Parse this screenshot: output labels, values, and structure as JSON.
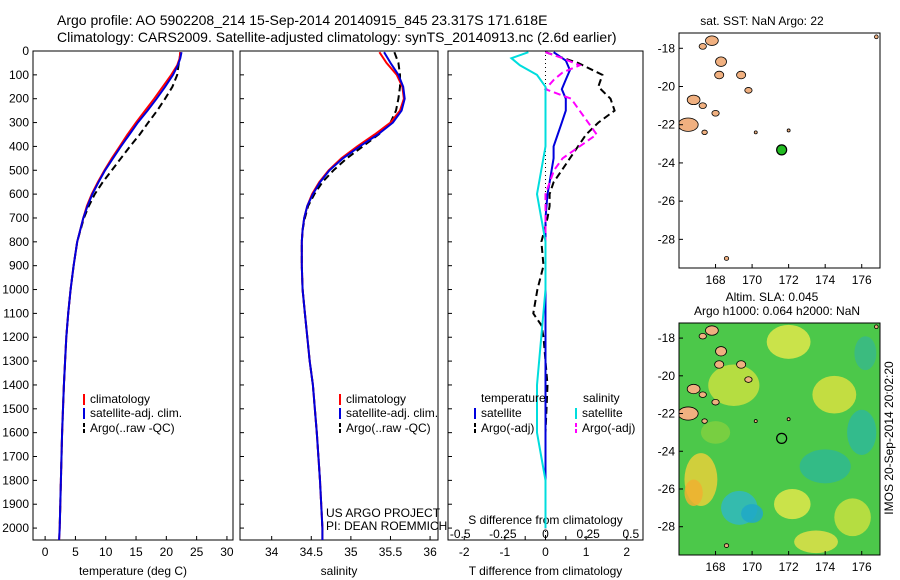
{
  "header": {
    "title_line1": "Argo profile: AO 5902208_214 15-Sep-2014 20140915_845 23.317S 171.618E",
    "title_line2": "Climatology: CARS2009. Satellite-adjusted climatology: synTS_20140913.nc (2.6d earlier)"
  },
  "side_text": "IMOS 20-Sep-2014 20:02:20",
  "project_credit": {
    "line1": "US ARGO PROJECT",
    "line2": "PI: DEAN ROEMMICH"
  },
  "colors": {
    "climatology": "#ff0000",
    "satellite": "#0000dd",
    "argo": "#000000",
    "sal_satellite": "#00dddd",
    "sal_argo": "#ff00ff",
    "land": "#f0b080",
    "marker": "#22bb22"
  },
  "chart_data": [
    {
      "type": "line",
      "xlabel": "temperature (deg C)",
      "ylabel": "",
      "xlim": [
        -2,
        31
      ],
      "ylim": [
        2050,
        0
      ],
      "x_ticks": [
        0,
        5,
        10,
        15,
        20,
        25,
        30
      ],
      "y_ticks": [
        0,
        100,
        200,
        300,
        400,
        500,
        600,
        700,
        800,
        900,
        1000,
        1100,
        1200,
        1300,
        1400,
        1500,
        1600,
        1700,
        1800,
        1900,
        2000
      ],
      "legend": [
        "climatology",
        "satellite-adj. clim.",
        "Argo(..raw -QC)"
      ],
      "series": [
        {
          "name": "climatology",
          "depth": [
            5,
            30,
            60,
            100,
            150,
            200,
            250,
            300,
            350,
            400,
            450,
            500,
            550,
            600,
            650,
            700,
            800,
            900,
            1000,
            1100,
            1200,
            1300,
            1400,
            1600,
            1800,
            2000,
            2050
          ],
          "values": [
            22.3,
            22.2,
            21.8,
            20.8,
            19.4,
            18.0,
            16.5,
            15.0,
            13.6,
            12.3,
            11.0,
            9.8,
            8.7,
            7.7,
            6.9,
            6.3,
            5.3,
            4.7,
            4.2,
            3.8,
            3.5,
            3.3,
            3.1,
            2.8,
            2.6,
            2.4,
            2.3
          ]
        },
        {
          "name": "satellite-adj. clim.",
          "depth": [
            5,
            30,
            60,
            100,
            150,
            200,
            250,
            300,
            350,
            400,
            450,
            500,
            550,
            600,
            650,
            700,
            800,
            900,
            1000,
            1100,
            1200,
            1300,
            1400,
            1600,
            1800,
            2000,
            2050
          ],
          "values": [
            22.5,
            22.3,
            21.9,
            21.1,
            19.8,
            18.4,
            16.9,
            15.3,
            13.9,
            12.5,
            11.2,
            9.9,
            8.8,
            7.8,
            7.0,
            6.3,
            5.3,
            4.7,
            4.2,
            3.8,
            3.5,
            3.3,
            3.1,
            2.8,
            2.6,
            2.4,
            2.3
          ]
        },
        {
          "name": "Argo(..raw -QC)",
          "depth": [
            5,
            30,
            60,
            100,
            150,
            200,
            250,
            300,
            350,
            400,
            450,
            500,
            550,
            600,
            650,
            700,
            800,
            900,
            1000,
            1100,
            1200,
            1300,
            1400,
            1600,
            1800,
            2000
          ],
          "values": [
            22.3,
            22.2,
            22.0,
            21.8,
            21.0,
            19.8,
            18.5,
            17.0,
            15.6,
            14.0,
            12.5,
            11.0,
            9.5,
            8.2,
            7.2,
            6.4,
            5.3,
            4.7,
            4.2,
            3.8,
            3.5,
            3.3,
            3.1,
            2.8,
            2.6,
            2.4
          ]
        }
      ]
    },
    {
      "type": "line",
      "xlabel": "salinity",
      "xlim": [
        33.6,
        36.1
      ],
      "ylim": [
        2050,
        0
      ],
      "x_ticks": [
        34,
        34.5,
        35,
        35.5,
        36
      ],
      "legend": [
        "climatology",
        "satellite-adj. clim.",
        "Argo(..raw -QC)"
      ],
      "series": [
        {
          "name": "climatology",
          "depth": [
            5,
            50,
            100,
            150,
            200,
            250,
            300,
            350,
            400,
            450,
            500,
            550,
            600,
            650,
            700,
            750,
            800,
            900,
            1000,
            1100,
            1200,
            1300,
            1400,
            1600,
            1800,
            2000,
            2050
          ],
          "values": [
            35.36,
            35.45,
            35.58,
            35.65,
            35.67,
            35.62,
            35.5,
            35.3,
            35.08,
            34.88,
            34.72,
            34.6,
            34.51,
            34.45,
            34.41,
            34.39,
            34.38,
            34.38,
            34.39,
            34.42,
            34.45,
            34.48,
            34.52,
            34.57,
            34.61,
            34.64,
            34.64
          ]
        },
        {
          "name": "satellite-adj. clim.",
          "depth": [
            5,
            50,
            100,
            150,
            200,
            250,
            300,
            350,
            400,
            450,
            500,
            550,
            600,
            650,
            700,
            750,
            800,
            900,
            1000,
            1100,
            1200,
            1300,
            1400,
            1600,
            1800,
            2000,
            2050
          ],
          "values": [
            35.42,
            35.5,
            35.6,
            35.66,
            35.68,
            35.64,
            35.53,
            35.34,
            35.11,
            34.9,
            34.73,
            34.61,
            34.52,
            34.45,
            34.41,
            34.39,
            34.38,
            34.38,
            34.39,
            34.42,
            34.45,
            34.48,
            34.52,
            34.57,
            34.61,
            34.64,
            34.64
          ]
        },
        {
          "name": "Argo(..raw -QC)",
          "depth": [
            5,
            50,
            100,
            150,
            200,
            250,
            300,
            350,
            400,
            450,
            500,
            550,
            600,
            650,
            700,
            750,
            800,
            900,
            1000,
            1100,
            1200,
            1300,
            1400,
            1600,
            1800,
            2000
          ],
          "values": [
            35.55,
            35.6,
            35.62,
            35.62,
            35.6,
            35.57,
            35.5,
            35.35,
            35.15,
            34.95,
            34.78,
            34.64,
            34.54,
            34.46,
            34.42,
            34.39,
            34.38,
            34.38,
            34.39,
            34.42,
            34.45,
            34.48,
            34.52,
            34.57,
            34.61,
            34.64
          ]
        }
      ]
    },
    {
      "type": "line",
      "xlabel": "T difference from climatology",
      "xlabel_top": "S difference from climatology",
      "xlim": [
        -2.4,
        2.4
      ],
      "ylim": [
        2050,
        0
      ],
      "x_ticks": [
        -2,
        -1,
        0,
        1,
        2
      ],
      "x_ticks_top": [
        -0.5,
        -0.25,
        0,
        0.25,
        0.5
      ],
      "legend_headers": [
        "temperature",
        "salinity"
      ],
      "legend": [
        "satellite",
        "Argo(-adj)",
        "satellite",
        "Argo(-adj)"
      ],
      "series": [
        {
          "name": "satellite",
          "group": "temperature",
          "depth": [
            5,
            40,
            80,
            120,
            160,
            200,
            250,
            300,
            350,
            400,
            450,
            500,
            550,
            600,
            700,
            800,
            900,
            1000,
            1100,
            1200,
            1400,
            1600,
            1800,
            2000
          ],
          "values": [
            0.2,
            0.5,
            0.6,
            0.5,
            0.4,
            0.5,
            0.5,
            0.4,
            0.3,
            0.2,
            0.2,
            0.15,
            0.1,
            0.05,
            0.0,
            0.0,
            0.0,
            0.0,
            0.0,
            0.0,
            0.0,
            0.0,
            0.0,
            0.0
          ]
        },
        {
          "name": "Argo(-adj)",
          "group": "temperature",
          "depth": [
            5,
            50,
            100,
            150,
            200,
            250,
            300,
            350,
            400,
            450,
            500,
            550,
            600,
            650,
            700,
            800,
            900,
            1000,
            1100,
            1150,
            1200,
            1300,
            1400,
            1600,
            1800,
            2000
          ],
          "values": [
            0.0,
            0.8,
            1.4,
            1.3,
            1.6,
            1.7,
            1.3,
            1.0,
            0.8,
            0.6,
            0.4,
            0.2,
            0.1,
            0.1,
            0.05,
            -0.1,
            -0.05,
            -0.2,
            -0.3,
            -0.1,
            -0.05,
            0.0,
            0.05,
            0.0,
            0.0,
            0.0
          ]
        },
        {
          "name": "satellite",
          "group": "salinity",
          "depth": [
            5,
            30,
            60,
            100,
            150,
            200,
            300,
            400,
            600,
            800,
            1000,
            1400,
            1600,
            1800,
            2000
          ],
          "values": [
            -0.1,
            -0.2,
            -0.15,
            -0.05,
            0.0,
            0.0,
            0.0,
            0.0,
            -0.05,
            0.0,
            0.0,
            -0.05,
            -0.05,
            0.0,
            0.0
          ]
        },
        {
          "name": "Argo(-adj)",
          "group": "salinity",
          "depth": [
            5,
            30,
            60,
            90,
            120,
            160,
            200,
            250,
            300,
            350,
            400,
            450,
            500,
            600,
            700,
            800
          ],
          "values": [
            0.0,
            0.1,
            0.2,
            0.1,
            0.05,
            0.0,
            0.15,
            0.2,
            0.25,
            0.3,
            0.2,
            0.1,
            0.05,
            0.0,
            0.0,
            0.0
          ]
        }
      ]
    },
    {
      "type": "scatter",
      "title": "sat. SST: NaN Argo: 22",
      "xlim": [
        166,
        177
      ],
      "ylim": [
        -29.5,
        -17.2
      ],
      "x_ticks": [
        168,
        170,
        172,
        174,
        176
      ],
      "y_ticks": [
        -18,
        -20,
        -22,
        -24,
        -26,
        -28
      ],
      "point": {
        "lon": 171.618,
        "lat": -23.317
      }
    },
    {
      "type": "heatmap",
      "title_line1": "Altim. SLA: 0.045",
      "title_line2": "Argo h1000: 0.064 h2000: NaN",
      "xlim": [
        166,
        177
      ],
      "ylim": [
        -29.5,
        -17.2
      ],
      "x_ticks": [
        168,
        170,
        172,
        174,
        176
      ],
      "y_ticks": [
        -18,
        -20,
        -22,
        -24,
        -26,
        -28
      ],
      "point": {
        "lon": 171.618,
        "lat": -23.317
      }
    }
  ]
}
